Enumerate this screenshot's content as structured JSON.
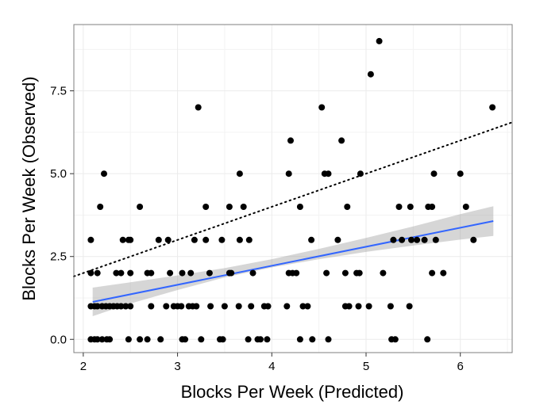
{
  "chart_data": {
    "type": "scatter",
    "title": "",
    "xlabel": "Blocks Per Week (Predicted)",
    "ylabel": "Blocks Per Week (Observed)",
    "xlim": [
      1.9,
      6.55
    ],
    "ylim": [
      -0.4,
      9.5
    ],
    "x_ticks": [
      2,
      3,
      4,
      5,
      6
    ],
    "x_tick_labels": [
      "2",
      "3",
      "4",
      "5",
      "6"
    ],
    "y_ticks": [
      0,
      2.5,
      5,
      7.5
    ],
    "y_tick_labels": [
      "0.0",
      "2.5",
      "5.0",
      "7.5"
    ],
    "grid": true,
    "legend": "none",
    "colors": {
      "points": "#000000",
      "fit_line": "#3366ff",
      "confidence_band": "#999999",
      "grid": "#ebebeb",
      "panel_border": "#7f7f7f",
      "identity_line": "#000000"
    },
    "points": [
      [
        2.08,
        0
      ],
      [
        2.12,
        0
      ],
      [
        2.15,
        0
      ],
      [
        2.2,
        0
      ],
      [
        2.25,
        0
      ],
      [
        2.28,
        0
      ],
      [
        2.48,
        0
      ],
      [
        2.6,
        0
      ],
      [
        2.68,
        0
      ],
      [
        2.82,
        0
      ],
      [
        3.05,
        0
      ],
      [
        3.08,
        0
      ],
      [
        3.25,
        0
      ],
      [
        3.45,
        0
      ],
      [
        3.48,
        0
      ],
      [
        3.75,
        0
      ],
      [
        3.85,
        0
      ],
      [
        3.88,
        0
      ],
      [
        3.95,
        0
      ],
      [
        4.3,
        0
      ],
      [
        4.43,
        0
      ],
      [
        4.6,
        0
      ],
      [
        5.27,
        0
      ],
      [
        5.31,
        0
      ],
      [
        5.65,
        0
      ],
      [
        2.08,
        1
      ],
      [
        2.12,
        1
      ],
      [
        2.15,
        1
      ],
      [
        2.2,
        1
      ],
      [
        2.24,
        1
      ],
      [
        2.28,
        1
      ],
      [
        2.32,
        1
      ],
      [
        2.36,
        1
      ],
      [
        2.4,
        1
      ],
      [
        2.45,
        1
      ],
      [
        2.5,
        1
      ],
      [
        2.72,
        1
      ],
      [
        2.88,
        1
      ],
      [
        2.96,
        1
      ],
      [
        3.0,
        1
      ],
      [
        3.04,
        1
      ],
      [
        3.12,
        1
      ],
      [
        3.16,
        1
      ],
      [
        3.2,
        1
      ],
      [
        3.35,
        1
      ],
      [
        3.5,
        1
      ],
      [
        3.65,
        1
      ],
      [
        3.78,
        1
      ],
      [
        3.92,
        1
      ],
      [
        3.96,
        1
      ],
      [
        4.16,
        1
      ],
      [
        4.33,
        1
      ],
      [
        4.38,
        1
      ],
      [
        4.78,
        1
      ],
      [
        4.82,
        1
      ],
      [
        4.92,
        1
      ],
      [
        5.03,
        1
      ],
      [
        5.26,
        1
      ],
      [
        5.46,
        1
      ],
      [
        2.08,
        2
      ],
      [
        2.15,
        2
      ],
      [
        2.35,
        2
      ],
      [
        2.4,
        2
      ],
      [
        2.5,
        2
      ],
      [
        2.68,
        2
      ],
      [
        2.72,
        2
      ],
      [
        2.92,
        2
      ],
      [
        3.05,
        2
      ],
      [
        3.14,
        2
      ],
      [
        3.34,
        2
      ],
      [
        3.55,
        2
      ],
      [
        3.57,
        2
      ],
      [
        3.8,
        2
      ],
      [
        4.18,
        2
      ],
      [
        4.22,
        2
      ],
      [
        4.26,
        2
      ],
      [
        4.58,
        2
      ],
      [
        4.78,
        2
      ],
      [
        4.9,
        2
      ],
      [
        4.93,
        2
      ],
      [
        5.18,
        2
      ],
      [
        5.7,
        2
      ],
      [
        5.82,
        2
      ],
      [
        2.08,
        3
      ],
      [
        2.42,
        3
      ],
      [
        2.48,
        3
      ],
      [
        2.5,
        3
      ],
      [
        2.8,
        3
      ],
      [
        2.9,
        3
      ],
      [
        3.18,
        3
      ],
      [
        3.3,
        3
      ],
      [
        3.47,
        3
      ],
      [
        3.66,
        3
      ],
      [
        3.76,
        3
      ],
      [
        4.42,
        3
      ],
      [
        4.7,
        3
      ],
      [
        5.29,
        3
      ],
      [
        5.38,
        3
      ],
      [
        5.48,
        3
      ],
      [
        5.54,
        3
      ],
      [
        5.62,
        3
      ],
      [
        5.74,
        3
      ],
      [
        6.14,
        3
      ],
      [
        2.18,
        4
      ],
      [
        2.6,
        4
      ],
      [
        3.3,
        4
      ],
      [
        3.55,
        4
      ],
      [
        3.7,
        4
      ],
      [
        4.3,
        4
      ],
      [
        4.8,
        4
      ],
      [
        5.35,
        4
      ],
      [
        5.47,
        4
      ],
      [
        5.66,
        4
      ],
      [
        5.7,
        4
      ],
      [
        6.06,
        4
      ],
      [
        2.22,
        5
      ],
      [
        3.66,
        5
      ],
      [
        4.18,
        5
      ],
      [
        4.56,
        5
      ],
      [
        4.6,
        5
      ],
      [
        4.94,
        5
      ],
      [
        5.72,
        5
      ],
      [
        6.0,
        5
      ],
      [
        4.2,
        6
      ],
      [
        4.74,
        6
      ],
      [
        3.22,
        7
      ],
      [
        4.53,
        7
      ],
      [
        6.34,
        7
      ],
      [
        5.05,
        8
      ],
      [
        5.14,
        9
      ]
    ],
    "fit_line": {
      "x": [
        2.1,
        6.35
      ],
      "y": [
        1.13,
        3.57
      ]
    },
    "confidence_band": {
      "x": [
        2.1,
        2.5,
        3.0,
        3.5,
        4.0,
        4.5,
        5.0,
        5.5,
        6.0,
        6.35
      ],
      "lower": [
        0.7,
        1.08,
        1.49,
        1.87,
        2.17,
        2.42,
        2.64,
        2.83,
        3.01,
        3.12
      ],
      "upper": [
        1.56,
        1.72,
        1.93,
        2.15,
        2.42,
        2.73,
        3.06,
        3.41,
        3.78,
        4.02
      ]
    },
    "identity_line": {
      "x": [
        1.9,
        6.55
      ],
      "y": [
        1.9,
        6.55
      ]
    }
  }
}
